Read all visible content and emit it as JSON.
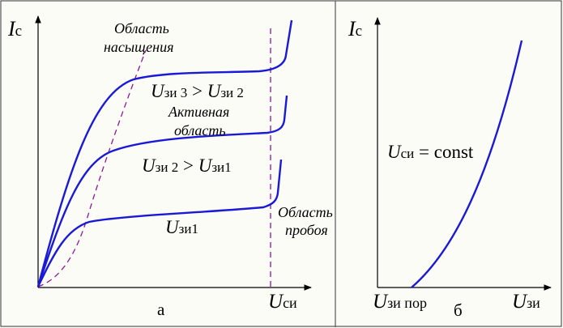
{
  "colors": {
    "curve": "#1a1ad6",
    "dashed": "#8a1a9a",
    "axis": "#000000",
    "border": "#555555"
  },
  "left": {
    "axis_y": {
      "sym": "I",
      "sub": "с"
    },
    "axis_x": {
      "sym": "U",
      "sub": "си"
    },
    "panel_label": "а",
    "region_saturation": {
      "line1": "Область",
      "line2": "насыщения"
    },
    "region_active": {
      "line1": "Активная",
      "line2": "область"
    },
    "region_breakdown": {
      "line1": "Область",
      "line2": "пробоя"
    },
    "curve3": {
      "sym1": "U",
      "sub1": "зи 3",
      "op": " > ",
      "sym2": "U",
      "sub2": "зи 2"
    },
    "curve2": {
      "sym1": "U",
      "sub1": "зи 2",
      "op": " > ",
      "sym2": "U",
      "sub2": "зи1"
    },
    "curve1": {
      "sym": "U",
      "sub": "зи1"
    }
  },
  "right": {
    "axis_y": {
      "sym": "I",
      "sub": "с"
    },
    "axis_x": {
      "sym": "U",
      "sub": "зи"
    },
    "threshold": {
      "sym": "U",
      "sub": "зи пор"
    },
    "panel_label": "б",
    "condition": {
      "sym": "U",
      "sub": "си",
      "rest": " = const"
    }
  }
}
